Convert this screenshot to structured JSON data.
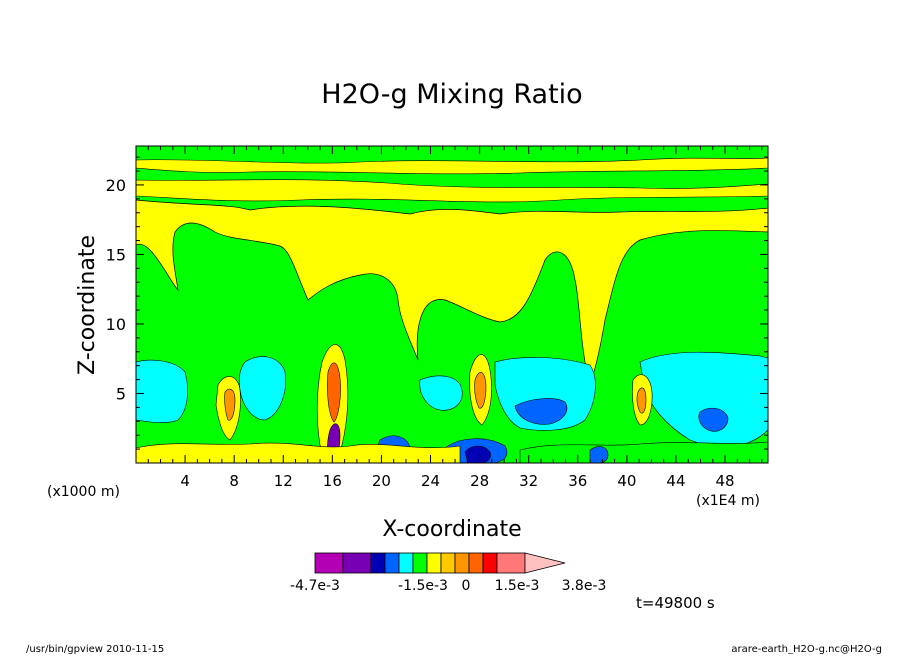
{
  "chart_data": {
    "type": "heatmap",
    "title": "H2O-g Mixing Ratio",
    "xlabel": "X-coordinate",
    "ylabel": "Z-coordinate",
    "x_unit_note": "(x1000 m)",
    "x_scale_note": "(x1E4 m)",
    "x_ticks": [
      "4",
      "8",
      "12",
      "16",
      "20",
      "24",
      "28",
      "32",
      "36",
      "40",
      "44",
      "48"
    ],
    "y_ticks": [
      "5",
      "10",
      "15",
      "20"
    ],
    "xlim": [
      0,
      51.5
    ],
    "ylim": [
      0,
      22.8
    ],
    "colorbar": {
      "colors": [
        "#b400b4",
        "#7800b4",
        "#0000b4",
        "#0064ff",
        "#00ffff",
        "#00ff00",
        "#ffff00",
        "#ffc800",
        "#ff9600",
        "#ff6400",
        "#ff0000",
        "#ff7878",
        "#ffc0c0"
      ],
      "labels": [
        "-4.7e-3",
        "-1.5e-3",
        "0",
        "1.5e-3",
        "3.8e-3"
      ]
    },
    "time_label": "t=49800 s",
    "footer_left": "/usr/bin/gpview   2010-11-15",
    "footer_right": "arare-earth_H2O-g.nc@H2O-g"
  }
}
